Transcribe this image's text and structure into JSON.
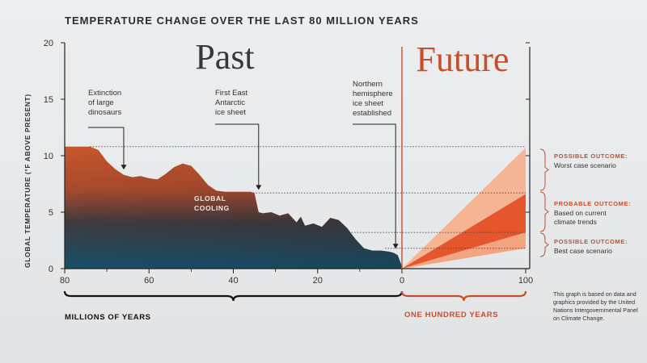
{
  "chart_data": {
    "type": "area",
    "title": "TEMPERATURE CHANGE OVER THE LAST 80 MILLION YEARS",
    "ylabel": "GLOBAL TEMPERATURE (°F ABOVE PRESENT)",
    "ylim": [
      0,
      20
    ],
    "y_ticks": [
      "0",
      "5",
      "10",
      "15",
      "20"
    ],
    "sections": [
      {
        "label": "Past",
        "x_label": "MILLIONS OF YEARS",
        "x_range": [
          80,
          0
        ],
        "x_ticks": [
          "80",
          "60",
          "40",
          "20",
          "0"
        ]
      },
      {
        "label": "Future",
        "x_label": "ONE HUNDRED YEARS",
        "x_range": [
          0,
          100
        ],
        "x_ticks": [
          "100"
        ]
      }
    ],
    "past_series": {
      "x": [
        80,
        74,
        72,
        70,
        68,
        66,
        64,
        62,
        60,
        58,
        56,
        54,
        52,
        50,
        48,
        46,
        44,
        42,
        40,
        38,
        36,
        35,
        34,
        33,
        31,
        29,
        27,
        25,
        24,
        23,
        21,
        19,
        17,
        15,
        13,
        11,
        9,
        7,
        5,
        3,
        2,
        1,
        0
      ],
      "y": [
        10.8,
        10.8,
        10.5,
        9.5,
        8.8,
        8.3,
        8.1,
        8.2,
        8.0,
        7.9,
        8.4,
        9.0,
        9.3,
        9.1,
        8.3,
        7.4,
        6.9,
        6.8,
        6.8,
        6.8,
        6.8,
        6.7,
        5.0,
        4.9,
        5.0,
        4.7,
        4.9,
        4.1,
        4.6,
        3.8,
        4.0,
        3.7,
        4.5,
        4.3,
        3.6,
        2.6,
        1.8,
        1.6,
        1.6,
        1.5,
        1.4,
        1.2,
        0.2
      ]
    },
    "future_outcomes": [
      {
        "label": "POSSIBLE OUTCOME:",
        "description": "Worst case scenario",
        "y_end_range": [
          6.6,
          10.7
        ],
        "color": "#f5b594"
      },
      {
        "label": "PROBABLE OUTCOME:",
        "description": "Based on current climate trends",
        "y_end_range": [
          3.2,
          6.6
        ],
        "color": "#e5562c"
      },
      {
        "label": "POSSIBLE OUTCOME:",
        "description": "Best case scenario",
        "y_end_range": [
          1.8,
          3.2
        ],
        "color": "#f3a582"
      }
    ],
    "annotations": [
      {
        "text": [
          "Extinction",
          "of large",
          "dinosaurs"
        ],
        "x": 66
      },
      {
        "text": [
          "First East",
          "Antarctic",
          "ice sheet"
        ],
        "x": 34
      },
      {
        "text": [
          "Northern",
          "hemisphere",
          "ice sheet",
          "established"
        ],
        "x": 1.5
      },
      {
        "text": [
          "GLOBAL",
          "COOLING"
        ],
        "x": 44
      }
    ],
    "reference_lines_y": [
      10.8,
      6.7,
      3.2,
      1.8
    ],
    "footnote": [
      "This graph is based on data and",
      "graphics provided by the United",
      "Nations Intergovernmental Panel",
      "on Climate Change."
    ],
    "colors": {
      "past_top": "#c8562a",
      "past_bottom": "#1d4e63",
      "future_label": "#c64e2a",
      "axis": "#222222",
      "divider": "#c64e2a"
    }
  }
}
